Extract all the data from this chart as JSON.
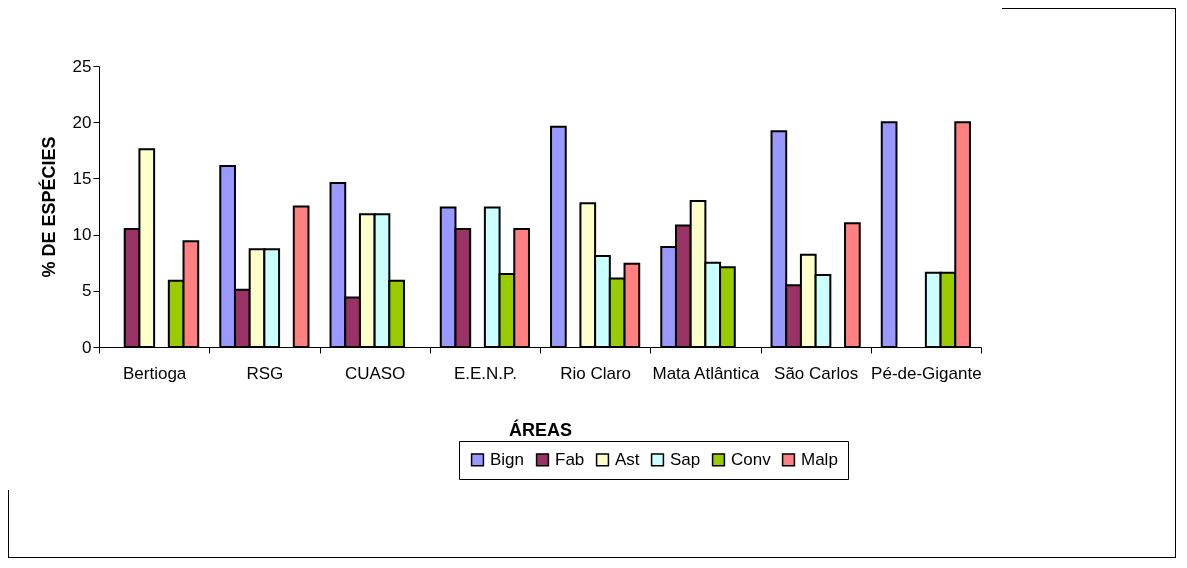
{
  "chart_data": {
    "type": "bar",
    "xlabel": "ÁREAS",
    "ylabel": "% DE ESPÉCIES",
    "categories": [
      "Bertioga",
      "RSG",
      "CUASO",
      "E.E.N.P.",
      "Rio Claro",
      "Mata Atlântica",
      "São Carlos",
      "Pé-de-Gigante"
    ],
    "series": [
      {
        "name": "Bign",
        "color": "#9999ff",
        "values": [
          null,
          16.1,
          14.6,
          12.4,
          19.6,
          8.9,
          19.2,
          20.0
        ]
      },
      {
        "name": "Fab",
        "color": "#993366",
        "values": [
          10.5,
          5.1,
          4.4,
          10.5,
          null,
          10.8,
          5.5,
          null
        ]
      },
      {
        "name": "Ast",
        "color": "#ffffcc",
        "values": [
          17.6,
          8.7,
          11.8,
          null,
          12.8,
          13.0,
          8.2,
          null
        ]
      },
      {
        "name": "Sap",
        "color": "#ccffff",
        "values": [
          null,
          8.7,
          11.8,
          12.4,
          8.1,
          7.5,
          6.4,
          6.6
        ]
      },
      {
        "name": "Conv",
        "color": "#99cc00",
        "values": [
          5.9,
          null,
          5.9,
          6.5,
          6.1,
          7.1,
          null,
          6.6
        ]
      },
      {
        "name": "Malp",
        "color": "#ff8080",
        "values": [
          9.4,
          12.5,
          null,
          10.5,
          7.4,
          null,
          11.0,
          20.0
        ]
      }
    ],
    "ylim": [
      0,
      25
    ],
    "yticks": [
      0,
      5,
      10,
      15,
      20,
      25
    ],
    "grid": false,
    "legend": "bottom"
  }
}
